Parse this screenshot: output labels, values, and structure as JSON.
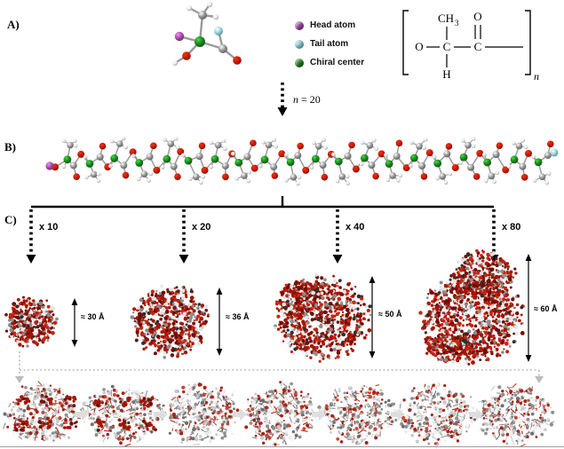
{
  "figure": {
    "panel_a_label": "A)",
    "panel_b_label": "B)",
    "panel_c_label": "C)"
  },
  "legend": {
    "items": [
      {
        "id": "head-atom",
        "label": "Head atom",
        "color": "#9c4ba0"
      },
      {
        "id": "tail-atom",
        "label": "Tail atom",
        "color": "#8fd0d6"
      },
      {
        "id": "chiral-center",
        "label": "Chiral center",
        "color": "#1f7e1f"
      }
    ]
  },
  "formula": {
    "o_ester": "O",
    "c1": "C",
    "c2": "C",
    "methyl_ch": "CH",
    "methyl_sub": "3",
    "o_carbonyl": "O",
    "h": "H",
    "n_subscript": "n"
  },
  "polymerization": {
    "n_symbol": "n",
    "n_value": " = 20"
  },
  "assemblies": [
    {
      "multiplier": "x 10",
      "size": "≈ 30 Å"
    },
    {
      "multiplier": "x 20",
      "size": "≈ 36 Å"
    },
    {
      "multiplier": "x 40",
      "size": "≈ 50 Å"
    },
    {
      "multiplier": "x 80",
      "size": "≈ 60 Å"
    }
  ],
  "colors": {
    "red_atom": "#c41a05",
    "carbon_gray": "#8f8f8f",
    "hydrogen_white": "#e8e8e8",
    "arrow_black": "#000000",
    "path_gray": "#bcbcbc"
  }
}
